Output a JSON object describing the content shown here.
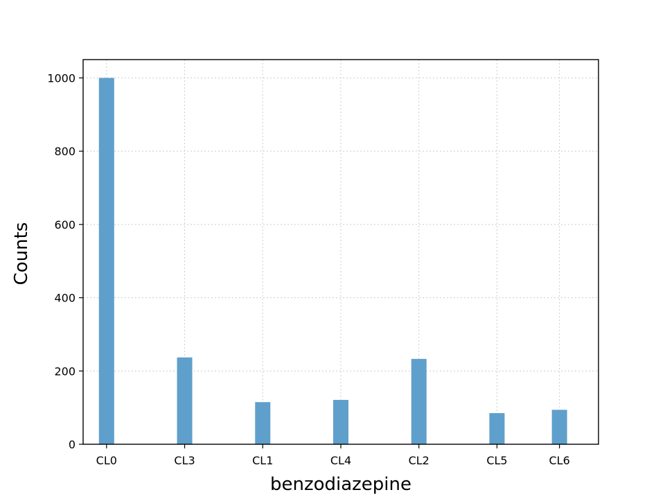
{
  "chart_data": {
    "type": "bar",
    "categories": [
      "CL0",
      "CL3",
      "CL1",
      "CL4",
      "CL2",
      "CL5",
      "CL6"
    ],
    "category_x": [
      0,
      1,
      2,
      3,
      4,
      5,
      5.8
    ],
    "values": [
      1000,
      237,
      115,
      121,
      233,
      85,
      94
    ],
    "title": "",
    "xlabel": "benzodiazepine",
    "ylabel": "Counts",
    "ylim": [
      0,
      1050
    ],
    "yticks": [
      0,
      200,
      400,
      600,
      800,
      1000
    ],
    "grid": true,
    "bar_color": "#5f9fcb"
  }
}
